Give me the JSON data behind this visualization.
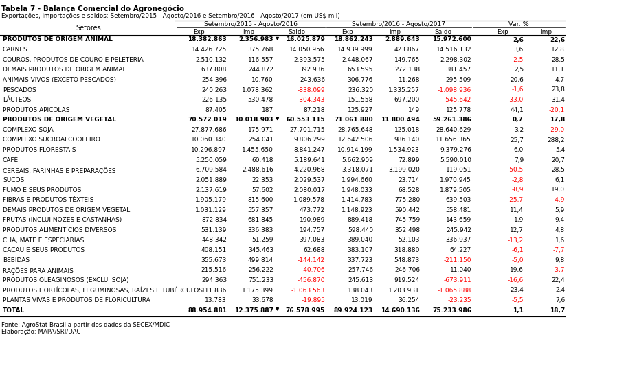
{
  "title": "Tabela 7 - Balança Comercial do Agronegócio",
  "subtitle": "Exportações, importações e saldos: Setembro/2015 - Agosto/2016 e Setembro/2016 - Agosto/2017 (em US$ mil)",
  "header1": "Setembro/2015 - Agosto/2016",
  "header2": "Setembro/2016 - Agosto/2017",
  "header3": "Var. %",
  "col_subheads": [
    "Exp",
    "Imp",
    "Saldo",
    "Exp",
    "Imp",
    "Saldo",
    "Exp",
    "Imp"
  ],
  "rows": [
    {
      "setor": "PRODUTOS DE ORIGEM ANIMAL",
      "bold": true,
      "data": [
        "18.382.863",
        "2.356.983",
        "16.025.879",
        "18.862.243",
        "2.889.643",
        "15.972.600",
        "2,6",
        "22,6"
      ]
    },
    {
      "setor": "CARNES",
      "bold": false,
      "data": [
        "14.426.725",
        "375.768",
        "14.050.956",
        "14.939.999",
        "423.867",
        "14.516.132",
        "3,6",
        "12,8"
      ]
    },
    {
      "setor": "COUROS, PRODUTOS DE COURO E PELETERIA",
      "bold": false,
      "data": [
        "2.510.132",
        "116.557",
        "2.393.575",
        "2.448.067",
        "149.765",
        "2.298.302",
        "-2,5",
        "28,5"
      ]
    },
    {
      "setor": "DEMAIS PRODUTOS DE ORIGEM ANIMAL",
      "bold": false,
      "data": [
        "637.808",
        "244.872",
        "392.936",
        "653.595",
        "272.138",
        "381.457",
        "2,5",
        "11,1"
      ]
    },
    {
      "setor": "ANIMAIS VIVOS (EXCETO PESCADOS)",
      "bold": false,
      "data": [
        "254.396",
        "10.760",
        "243.636",
        "306.776",
        "11.268",
        "295.509",
        "20,6",
        "4,7"
      ]
    },
    {
      "setor": "PESCADOS",
      "bold": false,
      "data": [
        "240.263",
        "1.078.362",
        "-838.099",
        "236.320",
        "1.335.257",
        "-1.098.936",
        "-1,6",
        "23,8"
      ]
    },
    {
      "setor": "LÁCTEOS",
      "bold": false,
      "data": [
        "226.135",
        "530.478",
        "-304.343",
        "151.558",
        "697.200",
        "-545.642",
        "-33,0",
        "31,4"
      ]
    },
    {
      "setor": "PRODUTOS APICOLAS",
      "bold": false,
      "data": [
        "87.405",
        "187",
        "87.218",
        "125.927",
        "149",
        "125.778",
        "44,1",
        "-20,1"
      ]
    },
    {
      "setor": "PRODUTOS DE ORIGEM VEGETAL",
      "bold": true,
      "data": [
        "70.572.019",
        "10.018.903",
        "60.553.115",
        "71.061.880",
        "11.800.494",
        "59.261.386",
        "0,7",
        "17,8"
      ]
    },
    {
      "setor": "COMPLEXO SOJA",
      "bold": false,
      "data": [
        "27.877.686",
        "175.971",
        "27.701.715",
        "28.765.648",
        "125.018",
        "28.640.629",
        "3,2",
        "-29,0"
      ]
    },
    {
      "setor": "COMPLEXO SUCROALCOOLEIRO",
      "bold": false,
      "data": [
        "10.060.340",
        "254.041",
        "9.806.299",
        "12.642.506",
        "986.140",
        "11.656.365",
        "25,7",
        "288,2"
      ]
    },
    {
      "setor": "PRODUTOS FLORESTAIS",
      "bold": false,
      "data": [
        "10.296.897",
        "1.455.650",
        "8.841.247",
        "10.914.199",
        "1.534.923",
        "9.379.276",
        "6,0",
        "5,4"
      ]
    },
    {
      "setor": "CAFÉ",
      "bold": false,
      "data": [
        "5.250.059",
        "60.418",
        "5.189.641",
        "5.662.909",
        "72.899",
        "5.590.010",
        "7,9",
        "20,7"
      ]
    },
    {
      "setor": "CEREAIS, FARINHAS E PREPARAÇÕES",
      "bold": false,
      "data": [
        "6.709.584",
        "2.488.616",
        "4.220.968",
        "3.318.071",
        "3.199.020",
        "119.051",
        "-50,5",
        "28,5"
      ]
    },
    {
      "setor": "SUCOS",
      "bold": false,
      "data": [
        "2.051.889",
        "22.353",
        "2.029.537",
        "1.994.660",
        "23.714",
        "1.970.945",
        "-2,8",
        "6,1"
      ]
    },
    {
      "setor": "FUMO E SEUS PRODUTOS",
      "bold": false,
      "data": [
        "2.137.619",
        "57.602",
        "2.080.017",
        "1.948.033",
        "68.528",
        "1.879.505",
        "-8,9",
        "19,0"
      ]
    },
    {
      "setor": "FIBRAS E PRODUTOS TÉXTEIS",
      "bold": false,
      "data": [
        "1.905.179",
        "815.600",
        "1.089.578",
        "1.414.783",
        "775.280",
        "639.503",
        "-25,7",
        "-4,9"
      ]
    },
    {
      "setor": "DEMAIS PRODUTOS DE ORIGEM VEGETAL",
      "bold": false,
      "data": [
        "1.031.129",
        "557.357",
        "473.772",
        "1.148.923",
        "590.442",
        "558.481",
        "11,4",
        "5,9"
      ]
    },
    {
      "setor": "FRUTAS (INCLUI NOZES E CASTANHAS)",
      "bold": false,
      "data": [
        "872.834",
        "681.845",
        "190.989",
        "889.418",
        "745.759",
        "143.659",
        "1,9",
        "9,4"
      ]
    },
    {
      "setor": "PRODUTOS ALIMENTÍCIOS DIVERSOS",
      "bold": false,
      "data": [
        "531.139",
        "336.383",
        "194.757",
        "598.440",
        "352.498",
        "245.942",
        "12,7",
        "4,8"
      ]
    },
    {
      "setor": "CHÁ, MATE E ESPECIARIAS",
      "bold": false,
      "data": [
        "448.342",
        "51.259",
        "397.083",
        "389.040",
        "52.103",
        "336.937",
        "-13,2",
        "1,6"
      ]
    },
    {
      "setor": "CACAU E SEUS PRODUTOS",
      "bold": false,
      "data": [
        "408.151",
        "345.463",
        "62.688",
        "383.107",
        "318.880",
        "64.227",
        "-6,1",
        "-7,7"
      ]
    },
    {
      "setor": "BEBIDAS",
      "bold": false,
      "data": [
        "355.673",
        "499.814",
        "-144.142",
        "337.723",
        "548.873",
        "-211.150",
        "-5,0",
        "9,8"
      ]
    },
    {
      "setor": "RAÇÕES PARA ANIMAIS",
      "bold": false,
      "data": [
        "215.516",
        "256.222",
        "-40.706",
        "257.746",
        "246.706",
        "11.040",
        "19,6",
        "-3,7"
      ]
    },
    {
      "setor": "PRODUTOS OLEAGINOSOS (EXCLUI SOJA)",
      "bold": false,
      "data": [
        "294.363",
        "751.233",
        "-456.870",
        "245.613",
        "919.524",
        "-673.911",
        "-16,6",
        "22,4"
      ]
    },
    {
      "setor": "PRODUTOS HORTÍCOLAS, LEGUMINOSAS, RAÍZES E TUBÉRCULOS",
      "bold": false,
      "data": [
        "111.836",
        "1.175.399",
        "-1.063.563",
        "138.043",
        "1.203.931",
        "-1.065.888",
        "23,4",
        "2,4"
      ]
    },
    {
      "setor": "PLANTAS VIVAS E PRODUTOS DE FLORICULTURA",
      "bold": false,
      "data": [
        "13.783",
        "33.678",
        "-19.895",
        "13.019",
        "36.254",
        "-23.235",
        "-5,5",
        "7,6"
      ]
    },
    {
      "setor": "TOTAL",
      "bold": true,
      "data": [
        "88.954.881",
        "12.375.887",
        "76.578.995",
        "89.924.123",
        "14.690.136",
        "75.233.986",
        "1,1",
        "18,7"
      ]
    }
  ],
  "footer": [
    "Fonte: AgroStat Brasil a partir dos dados da SECEX/MDIC",
    "Elaboração: MAPA/SRI/DAC"
  ],
  "neg_color": "#FF0000",
  "pos_color": "#000000",
  "triangle_rows": [
    0,
    8,
    27
  ]
}
